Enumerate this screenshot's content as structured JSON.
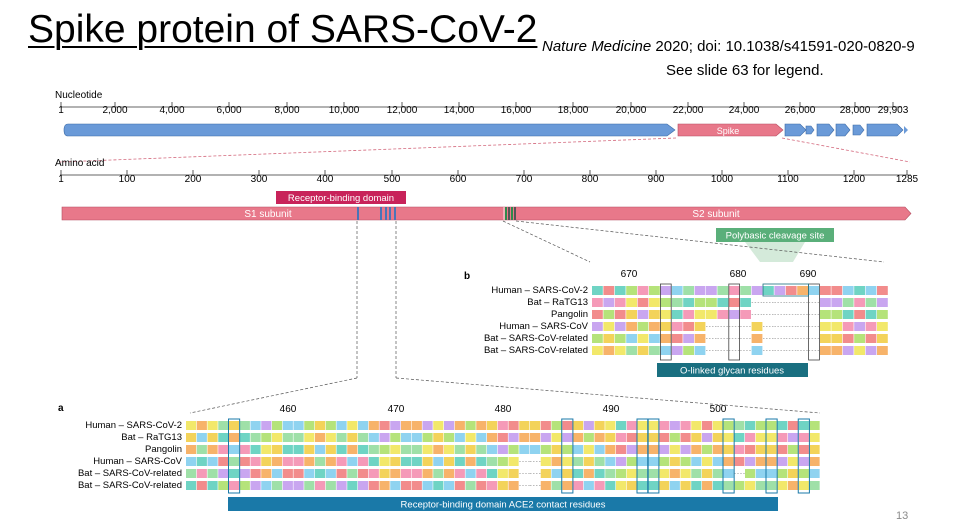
{
  "slide": {
    "title": "Spike protein of SARS-CoV-2",
    "citation_journal": "Nature Medicine",
    "citation_rest": " 2020; doi: 10.1038/s41591-020-0820-9",
    "legend_note": "See slide 63 for legend.",
    "slide_number": "13"
  },
  "colors": {
    "genome_blue": "#6a9ad8",
    "spike_pink": "#e8788a",
    "rbd_red": "#c8235a",
    "teal_dark": "#1a6f80",
    "green_label": "#5aaf7a",
    "ace2_blue": "#1a79a8"
  },
  "nucleotide": {
    "label": "Nucleotide",
    "ticks": [
      "1",
      "2,000",
      "4,000",
      "6,000",
      "8,000",
      "10,000",
      "12,000",
      "14,000",
      "16,000",
      "18,000",
      "20,000",
      "22,000",
      "24,000",
      "26,000",
      "28,000",
      "29,903"
    ],
    "spike_label": "Spike"
  },
  "amino_acid": {
    "label": "Amino acid",
    "ticks": [
      "1",
      "100",
      "200",
      "300",
      "400",
      "500",
      "600",
      "700",
      "800",
      "900",
      "1000",
      "1100",
      "1200",
      "1285"
    ],
    "rbd_label": "Receptor-binding domain",
    "s1_label": "S1 subunit",
    "s2_label": "S2 subunit",
    "polybasic_label": "Polybasic cleavage site"
  },
  "panel_b": {
    "letter": "b",
    "positions": [
      "670",
      "680",
      "690"
    ],
    "rows": [
      "Human – SARS-CoV-2",
      "Bat – RaTG13",
      "Pangolin",
      "Human – SARS-CoV",
      "Bat – SARS-CoV-related",
      "Bat – SARS-CoV-related"
    ],
    "footer": "O-linked glycan residues"
  },
  "panel_a": {
    "letter": "a",
    "positions": [
      "460",
      "470",
      "480",
      "490",
      "500"
    ],
    "rows": [
      "Human – SARS-CoV-2",
      "Bat – RaTG13",
      "Pangolin",
      "Human – SARS-CoV",
      "Bat – SARS-CoV-related",
      "Bat – SARS-CoV-related"
    ],
    "footer": "Receptor-binding domain ACE2 contact residues"
  }
}
